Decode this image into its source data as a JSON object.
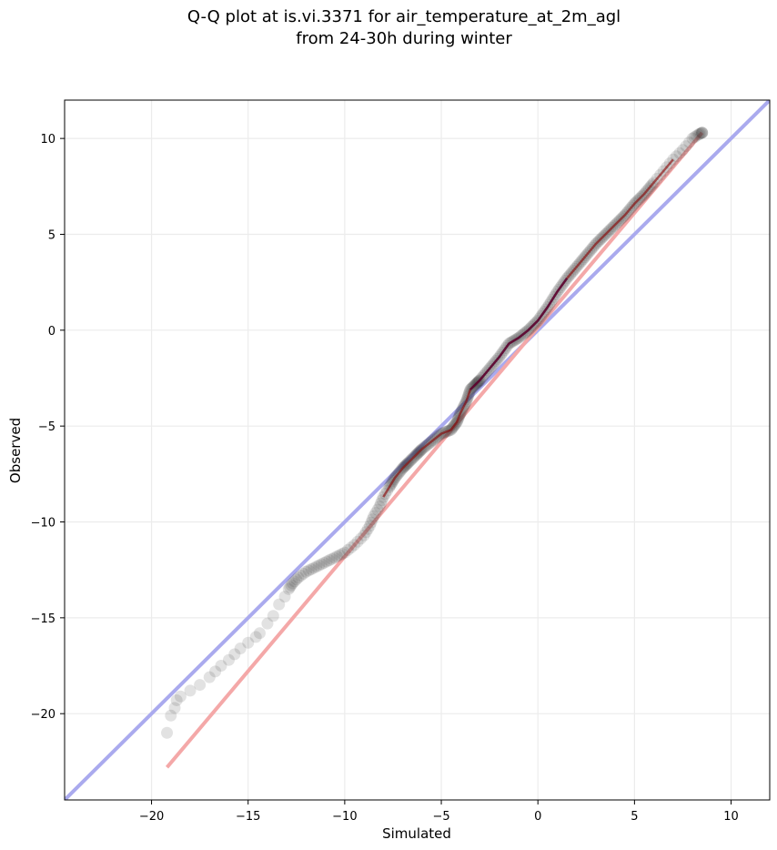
{
  "chart_data": {
    "type": "scatter",
    "title": "Q-Q plot at is.vi.3371 for air_temperature_at_2m_agl",
    "subtitle": "from 24-30h during winter",
    "xlabel": "Simulated",
    "ylabel": "Observed",
    "xlim": [
      -24.5,
      12
    ],
    "ylim": [
      -24.5,
      12
    ],
    "x_ticks": [
      -20,
      -15,
      -10,
      -5,
      0,
      5,
      10
    ],
    "y_ticks": [
      -20,
      -15,
      -10,
      -5,
      0,
      5,
      10
    ],
    "x_tick_labels": [
      "−20",
      "−15",
      "−10",
      "−5",
      "0",
      "5",
      "10"
    ],
    "y_tick_labels": [
      "−20",
      "−15",
      "−10",
      "−5",
      "0",
      "5",
      "10"
    ],
    "grid": true,
    "colors": {
      "points": "#333333",
      "identity_line": "#aaaaee",
      "fit_line": "#f4a8a8",
      "central_red": "#8b0000",
      "central_blue": "#000080"
    },
    "quantile_points": {
      "name": "",
      "x": [
        -19.2,
        -19.0,
        -18.8,
        -18.7,
        -18.5,
        -18.0,
        -17.5,
        -17.0,
        -16.7,
        -16.4,
        -16.0,
        -15.7,
        -15.4,
        -15.0,
        -14.6,
        -14.4,
        -14.0,
        -13.7,
        -13.4,
        -13.1,
        -12.9,
        -12.7,
        -12.4,
        -12.0,
        -11.6,
        -11.2,
        -10.8,
        -10.4,
        -10.0,
        -9.5,
        -9.0,
        -8.7,
        -8.5,
        -8.2,
        -8.0,
        -7.7,
        -7.4,
        -7.0,
        -6.7,
        -6.3,
        -6.0,
        -5.5,
        -5.0,
        -4.5,
        -4.2,
        -4.0,
        -3.7,
        -3.5,
        -3.2,
        -3.0,
        -2.5,
        -2.0,
        -1.5,
        -1.0,
        -0.5,
        0.0,
        0.5,
        1.0,
        1.5,
        2.0,
        2.5,
        3.0,
        3.5,
        4.0,
        4.5,
        5.0,
        5.5,
        6.0,
        6.5,
        7.0,
        7.5,
        8.0,
        8.3,
        8.5
      ],
      "y": [
        -21.0,
        -20.1,
        -19.7,
        -19.3,
        -19.1,
        -18.8,
        -18.5,
        -18.1,
        -17.8,
        -17.5,
        -17.2,
        -16.9,
        -16.6,
        -16.3,
        -16.0,
        -15.8,
        -15.3,
        -14.9,
        -14.3,
        -13.9,
        -13.5,
        -13.2,
        -12.9,
        -12.6,
        -12.4,
        -12.2,
        -12.0,
        -11.8,
        -11.6,
        -11.2,
        -10.7,
        -10.2,
        -9.7,
        -9.2,
        -8.7,
        -8.2,
        -7.7,
        -7.2,
        -6.9,
        -6.5,
        -6.2,
        -5.8,
        -5.4,
        -5.2,
        -4.8,
        -4.3,
        -3.7,
        -3.1,
        -2.8,
        -2.6,
        -2.0,
        -1.4,
        -0.7,
        -0.4,
        0.0,
        0.5,
        1.2,
        2.0,
        2.7,
        3.3,
        3.9,
        4.5,
        5.0,
        5.5,
        6.0,
        6.6,
        7.1,
        7.7,
        8.3,
        8.9,
        9.4,
        10.0,
        10.2,
        10.3
      ]
    },
    "identity_line": {
      "x": [
        -24.5,
        12
      ],
      "y": [
        -24.5,
        12
      ]
    },
    "fit_line": {
      "x": [
        -19.2,
        8.5
      ],
      "y": [
        -22.8,
        10.3
      ]
    }
  }
}
